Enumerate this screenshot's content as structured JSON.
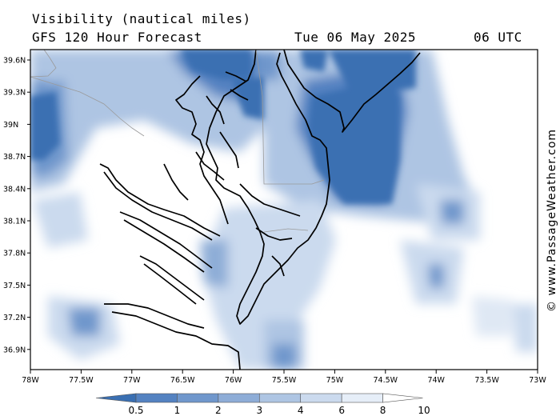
{
  "header": {
    "line1": "Visibility (nautical miles)",
    "line2": "GFS 120 Hour Forecast",
    "date": "Tue 06 May 2025",
    "time": "06 UTC"
  },
  "map": {
    "lat_labels": [
      "39.6N",
      "39.3N",
      "39N",
      "38.7N",
      "38.4N",
      "38.1N",
      "37.8N",
      "37.5N",
      "37.2N",
      "36.9N"
    ],
    "lon_labels": [
      "78W",
      "77.5W",
      "77W",
      "76.5W",
      "76W",
      "75.5W",
      "75W",
      "74.5W",
      "74W",
      "73.5W",
      "73W"
    ]
  },
  "colorbar": {
    "labels": [
      "0.5",
      "1",
      "2",
      "3",
      "4",
      "6",
      "8",
      "10"
    ],
    "colors": [
      "#3a6fb2",
      "#5482c1",
      "#7097cc",
      "#8eadd7",
      "#aec5e3",
      "#cbdaee",
      "#e6eef8",
      "#ffffff"
    ]
  },
  "credit": "© www.PassageWeather.com",
  "colors": {
    "dark_blue": "#3a6fb2",
    "mid_blue": "#7097cc",
    "light_blue": "#aec5e3",
    "pale_blue": "#dfe8f4",
    "coast": "#000000",
    "border": "#9a9a9a"
  }
}
